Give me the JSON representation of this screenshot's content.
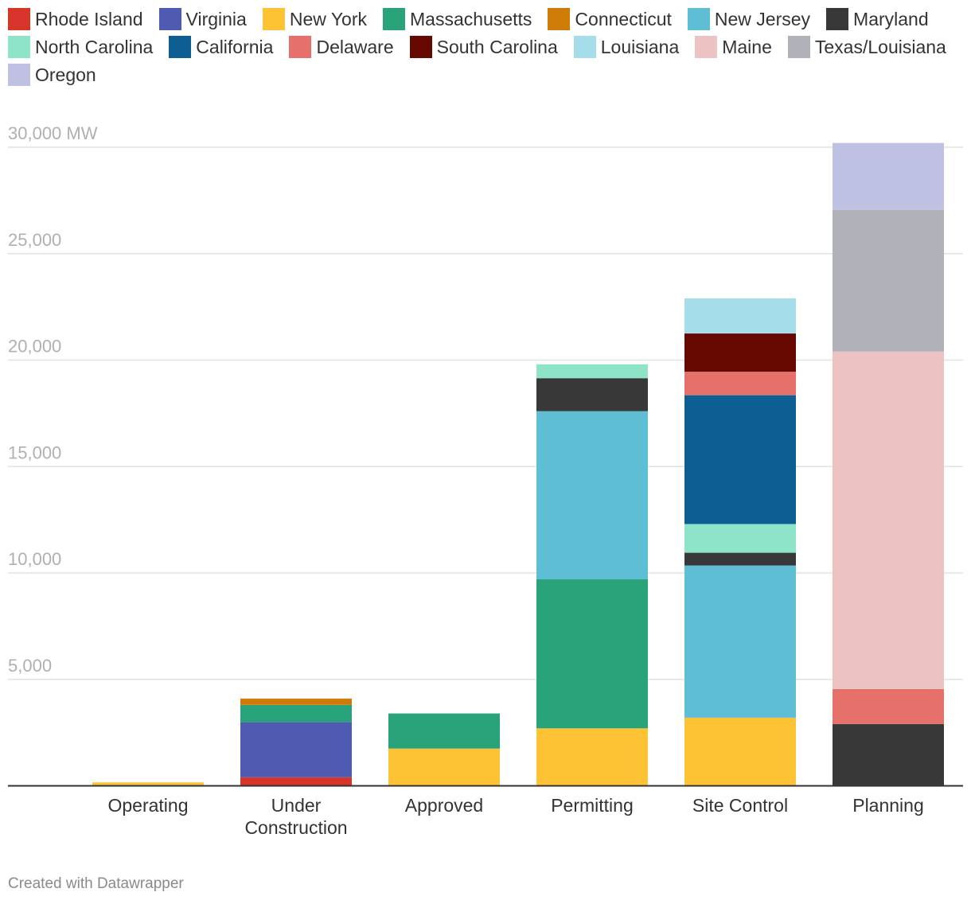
{
  "chart_data": {
    "type": "bar",
    "stacked": true,
    "categories": [
      "Operating",
      "Under Construction",
      "Approved",
      "Permitting",
      "Site Control",
      "Planning"
    ],
    "category_lines": [
      [
        "Operating"
      ],
      [
        "Under",
        "Construction"
      ],
      [
        "Approved"
      ],
      [
        "Permitting"
      ],
      [
        "Site Control"
      ],
      [
        "Planning"
      ]
    ],
    "y_ticks": [
      {
        "value": 5000,
        "label": "5,000"
      },
      {
        "value": 10000,
        "label": "10,000"
      },
      {
        "value": 15000,
        "label": "15,000"
      },
      {
        "value": 20000,
        "label": "20,000"
      },
      {
        "value": 25000,
        "label": "25,000"
      },
      {
        "value": 30000,
        "label": "30,000 MW"
      }
    ],
    "ylim": [
      0,
      30000
    ],
    "ylabel": "MW",
    "legend": [
      {
        "name": "Rhode Island",
        "color": "#d8352a"
      },
      {
        "name": "Virginia",
        "color": "#4f5bb1"
      },
      {
        "name": "New York",
        "color": "#fec334"
      },
      {
        "name": "Massachusetts",
        "color": "#28a37a"
      },
      {
        "name": "Connecticut",
        "color": "#cf7c07"
      },
      {
        "name": "New Jersey",
        "color": "#5ebed4"
      },
      {
        "name": "Maryland",
        "color": "#383838"
      },
      {
        "name": "North Carolina",
        "color": "#8de4c8"
      },
      {
        "name": "California",
        "color": "#0c5e93"
      },
      {
        "name": "Delaware",
        "color": "#e6716b"
      },
      {
        "name": "South Carolina",
        "color": "#670800"
      },
      {
        "name": "Louisiana",
        "color": "#a5deea"
      },
      {
        "name": "Maine",
        "color": "#ecc3c2"
      },
      {
        "name": "Texas/Louisiana",
        "color": "#b1b1b9"
      },
      {
        "name": "Oregon",
        "color": "#bec1e1"
      }
    ],
    "bars": [
      {
        "category": "Operating",
        "segments": [
          {
            "series": "Rhode Island",
            "value": 30
          },
          {
            "series": "New York",
            "value": 130
          }
        ]
      },
      {
        "category": "Under Construction",
        "segments": [
          {
            "series": "Rhode Island",
            "value": 400
          },
          {
            "series": "Virginia",
            "value": 2600
          },
          {
            "series": "Massachusetts",
            "value": 800
          },
          {
            "series": "Connecticut",
            "value": 300
          }
        ]
      },
      {
        "category": "Approved",
        "segments": [
          {
            "series": "New York",
            "value": 1750
          },
          {
            "series": "Massachusetts",
            "value": 1650
          }
        ]
      },
      {
        "category": "Permitting",
        "segments": [
          {
            "series": "New York",
            "value": 2700
          },
          {
            "series": "Massachusetts",
            "value": 7000
          },
          {
            "series": "New Jersey",
            "value": 7900
          },
          {
            "series": "Maryland",
            "value": 1550
          },
          {
            "series": "North Carolina",
            "value": 650
          }
        ]
      },
      {
        "category": "Site Control",
        "segments": [
          {
            "series": "New York",
            "value": 3200
          },
          {
            "series": "New Jersey",
            "value": 7150
          },
          {
            "series": "Maryland",
            "value": 600
          },
          {
            "series": "North Carolina",
            "value": 1350
          },
          {
            "series": "California",
            "value": 6050
          },
          {
            "series": "Delaware",
            "value": 1100
          },
          {
            "series": "South Carolina",
            "value": 1800
          },
          {
            "series": "Louisiana",
            "value": 1650
          }
        ]
      },
      {
        "category": "Planning",
        "segments": [
          {
            "series": "Maryland",
            "value": 2900
          },
          {
            "series": "Delaware",
            "value": 1650
          },
          {
            "series": "Maine",
            "value": 15850
          },
          {
            "series": "Texas/Louisiana",
            "value": 6650
          },
          {
            "series": "Oregon",
            "value": 3150
          }
        ]
      }
    ]
  },
  "footer": {
    "credit": "Created with Datawrapper"
  }
}
